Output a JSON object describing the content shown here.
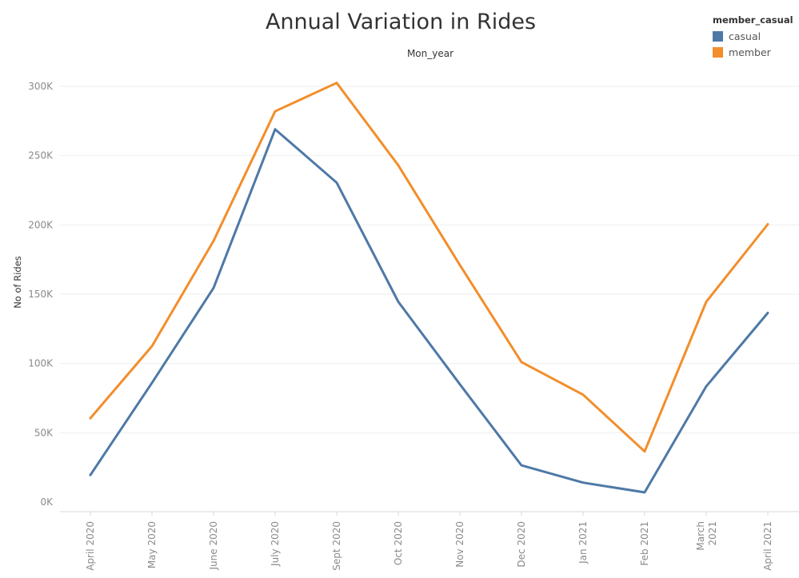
{
  "chart_data": {
    "type": "line",
    "title": "Annual Variation in Rides",
    "subtitle": "Mon_year",
    "xlabel": "",
    "ylabel": "No of Rides",
    "categories": [
      "April 2020",
      "May 2020",
      "June 2020",
      "July 2020",
      "Sept 2020",
      "Oct 2020",
      "Nov 2020",
      "Dec 2020",
      "Jan 2021",
      "Feb 2021",
      "March 2021",
      "April 2021"
    ],
    "ylim": [
      0,
      320000
    ],
    "yticks": [
      0,
      50000,
      100000,
      150000,
      200000,
      250000,
      300000
    ],
    "ytick_labels": [
      "0K",
      "50K",
      "100K",
      "150K",
      "200K",
      "250K",
      "300K"
    ],
    "grid": "horizontal",
    "legend_position": "top-right",
    "legend_title": "member_casual",
    "series": [
      {
        "name": "casual",
        "color": "#4e79a7",
        "values": [
          19500,
          86000,
          154500,
          269000,
          230500,
          144500,
          85000,
          26500,
          14000,
          7000,
          83500,
          136500
        ]
      },
      {
        "name": "member",
        "color": "#f28e2b",
        "values": [
          60500,
          112500,
          188500,
          282000,
          302500,
          243000,
          171000,
          101000,
          77500,
          36500,
          144500,
          200500
        ]
      }
    ]
  }
}
